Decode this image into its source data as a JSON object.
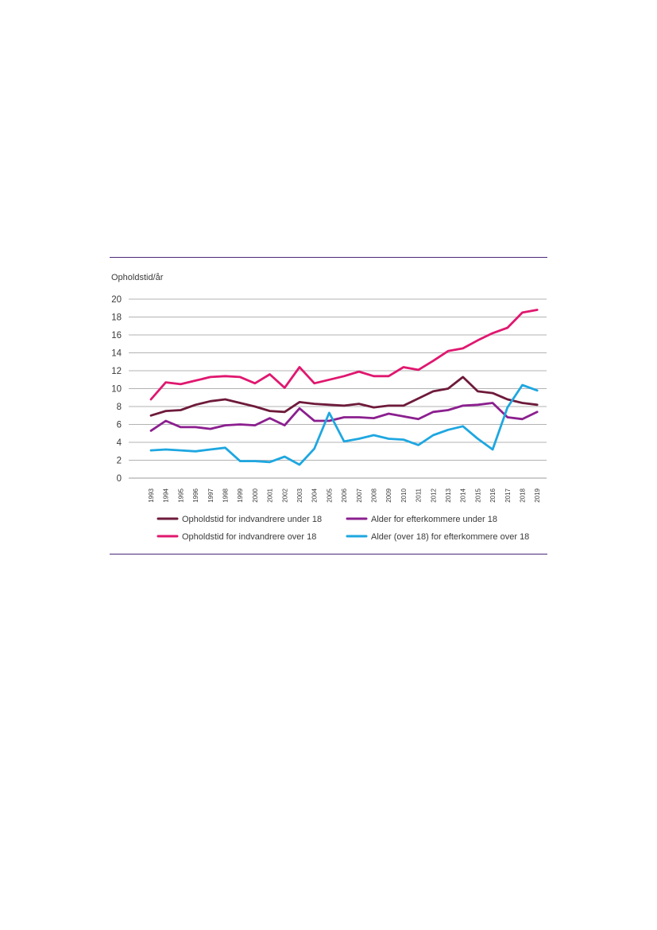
{
  "chart_data": {
    "type": "line",
    "ylabel": "Opholdstid/år",
    "ylim": [
      0,
      20
    ],
    "yticks": [
      "0",
      "2",
      "4",
      "6",
      "8",
      "10",
      "12",
      "14",
      "16",
      "18",
      "20"
    ],
    "grid": "horizontal",
    "legend_placement": "bottom",
    "categories": [
      "1993",
      "1994",
      "1995",
      "1996",
      "1997",
      "1998",
      "1999",
      "2000",
      "2001",
      "2002",
      "2003",
      "2004",
      "2005",
      "2006",
      "2007",
      "2008",
      "2009",
      "2010",
      "2011",
      "2012",
      "2013",
      "2014",
      "2015",
      "2016",
      "2017",
      "2018",
      "2019"
    ],
    "series": [
      {
        "name": "Opholdstid for indvandrere under 18",
        "color": "#6e1a3a",
        "values": [
          7.0,
          7.5,
          7.6,
          8.2,
          8.6,
          8.8,
          8.4,
          8.0,
          7.5,
          7.4,
          8.5,
          8.3,
          8.2,
          8.1,
          8.3,
          7.9,
          8.1,
          8.1,
          8.9,
          9.7,
          10.0,
          11.3,
          9.7,
          9.5,
          8.8,
          8.4,
          8.2
        ]
      },
      {
        "name": "Alder for efterkommere under 18",
        "color": "#8b1f8f",
        "values": [
          5.3,
          6.4,
          5.7,
          5.7,
          5.5,
          5.9,
          6.0,
          5.9,
          6.7,
          5.9,
          7.8,
          6.4,
          6.4,
          6.8,
          6.8,
          6.7,
          7.2,
          6.9,
          6.6,
          7.4,
          7.6,
          8.1,
          8.2,
          8.4,
          6.8,
          6.6,
          7.4
        ]
      },
      {
        "name": "Opholdstid for indvandrere over 18",
        "color": "#e0176f",
        "values": [
          8.8,
          10.7,
          10.5,
          10.9,
          11.3,
          11.4,
          11.3,
          10.6,
          11.6,
          10.1,
          12.4,
          10.6,
          11.0,
          11.4,
          11.9,
          11.4,
          11.4,
          12.4,
          12.1,
          13.1,
          14.2,
          14.5,
          15.4,
          16.2,
          16.8,
          18.5,
          18.8
        ]
      },
      {
        "name": "Alder (over 18) for efterkommere over 18",
        "color": "#1ea7e1",
        "values": [
          3.1,
          3.2,
          3.1,
          3.0,
          3.2,
          3.4,
          1.9,
          1.9,
          1.8,
          2.4,
          1.5,
          3.3,
          7.3,
          4.1,
          4.4,
          4.8,
          4.4,
          4.3,
          3.7,
          4.8,
          5.4,
          5.8,
          4.4,
          3.2,
          7.9,
          10.4,
          9.8
        ]
      }
    ]
  }
}
